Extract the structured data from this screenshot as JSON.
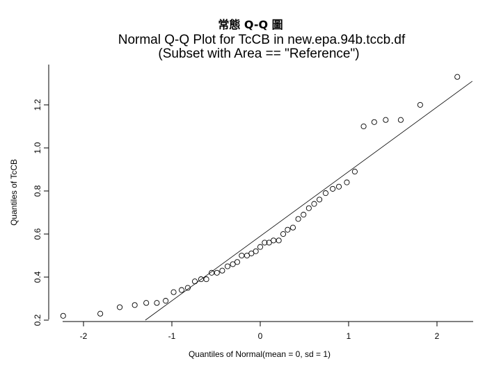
{
  "slide": {
    "title": "常態 Q-Q 圖"
  },
  "chart_data": {
    "type": "scatter",
    "title": "Normal Q-Q Plot for TcCB in new.epa.94b.tccb.df",
    "subtitle": "(Subset with Area == \"Reference\")",
    "xlabel": "Quantiles of Normal(mean = 0, sd = 1)",
    "ylabel": "Quantiles of TcCB",
    "xlim": [
      -2.4,
      2.4
    ],
    "ylim": [
      0.2,
      1.4
    ],
    "xticks": [
      -2,
      -1,
      0,
      1,
      2
    ],
    "xtick_labels": [
      "-2",
      "-1",
      "0",
      "1",
      "2"
    ],
    "yticks": [
      0.2,
      0.4,
      0.6,
      0.8,
      1.0,
      1.2
    ],
    "ytick_labels": [
      "0.2",
      "0.4",
      "0.6",
      "0.8",
      "1.0",
      "1.2"
    ],
    "grid": false,
    "marker": "open-circle",
    "points": [
      {
        "x": -2.23,
        "y": 0.22
      },
      {
        "x": -1.81,
        "y": 0.23
      },
      {
        "x": -1.59,
        "y": 0.26
      },
      {
        "x": -1.42,
        "y": 0.27
      },
      {
        "x": -1.29,
        "y": 0.28
      },
      {
        "x": -1.17,
        "y": 0.28
      },
      {
        "x": -1.07,
        "y": 0.29
      },
      {
        "x": -0.98,
        "y": 0.33
      },
      {
        "x": -0.89,
        "y": 0.34
      },
      {
        "x": -0.82,
        "y": 0.35
      },
      {
        "x": -0.74,
        "y": 0.38
      },
      {
        "x": -0.67,
        "y": 0.39
      },
      {
        "x": -0.61,
        "y": 0.39
      },
      {
        "x": -0.55,
        "y": 0.42
      },
      {
        "x": -0.49,
        "y": 0.42
      },
      {
        "x": -0.43,
        "y": 0.43
      },
      {
        "x": -0.37,
        "y": 0.45
      },
      {
        "x": -0.31,
        "y": 0.46
      },
      {
        "x": -0.26,
        "y": 0.47
      },
      {
        "x": -0.21,
        "y": 0.5
      },
      {
        "x": -0.15,
        "y": 0.5
      },
      {
        "x": -0.1,
        "y": 0.51
      },
      {
        "x": -0.05,
        "y": 0.52
      },
      {
        "x": 0.0,
        "y": 0.54
      },
      {
        "x": 0.05,
        "y": 0.56
      },
      {
        "x": 0.1,
        "y": 0.56
      },
      {
        "x": 0.15,
        "y": 0.57
      },
      {
        "x": 0.21,
        "y": 0.57
      },
      {
        "x": 0.26,
        "y": 0.6
      },
      {
        "x": 0.31,
        "y": 0.62
      },
      {
        "x": 0.37,
        "y": 0.63
      },
      {
        "x": 0.43,
        "y": 0.67
      },
      {
        "x": 0.49,
        "y": 0.69
      },
      {
        "x": 0.55,
        "y": 0.72
      },
      {
        "x": 0.61,
        "y": 0.74
      },
      {
        "x": 0.67,
        "y": 0.76
      },
      {
        "x": 0.74,
        "y": 0.79
      },
      {
        "x": 0.82,
        "y": 0.81
      },
      {
        "x": 0.89,
        "y": 0.82
      },
      {
        "x": 0.98,
        "y": 0.84
      },
      {
        "x": 1.07,
        "y": 0.89
      },
      {
        "x": 1.17,
        "y": 1.1
      },
      {
        "x": 1.29,
        "y": 1.12
      },
      {
        "x": 1.42,
        "y": 1.13
      },
      {
        "x": 1.59,
        "y": 1.13
      },
      {
        "x": 1.81,
        "y": 1.2
      },
      {
        "x": 2.23,
        "y": 1.33
      }
    ],
    "reference_line": {
      "intercept": 0.59,
      "slope": 0.3
    }
  }
}
